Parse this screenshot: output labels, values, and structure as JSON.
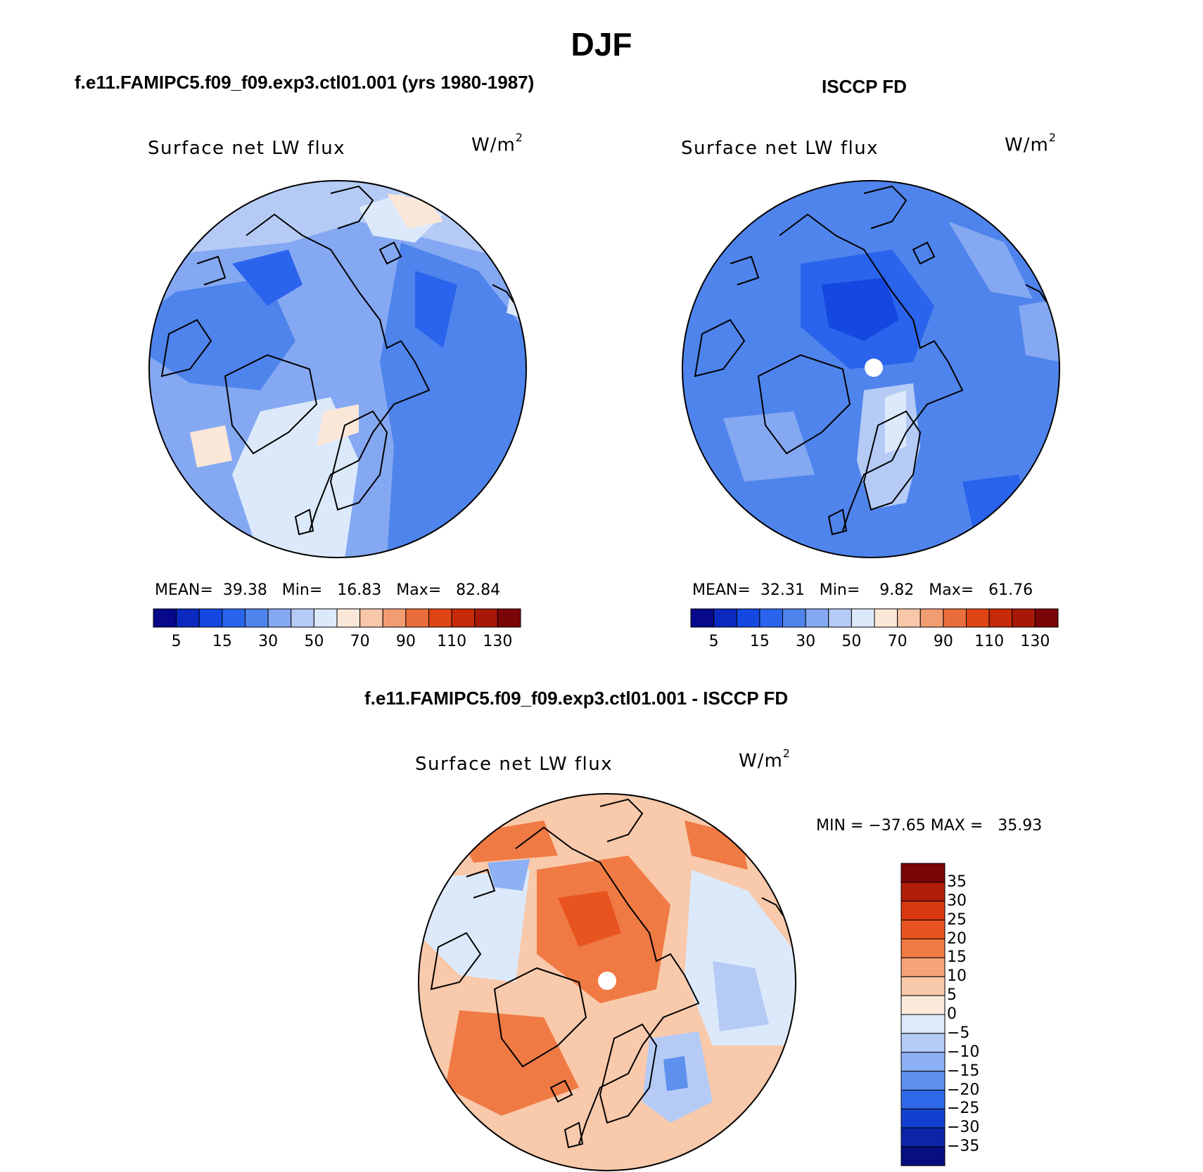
{
  "title": "DJF",
  "panels": {
    "model": {
      "case_title": "f.e11.FAMIPC5.f09_f09.exp3.ctl01.001 (yrs 1980-1987)",
      "title": "Surface net LW flux",
      "units": "W/m",
      "units_sup": "2",
      "stats": {
        "mean_label": "MEAN=",
        "mean": "39.38",
        "min_label": "Min=",
        "min": "16.83",
        "max_label": "Max=",
        "max": "82.84"
      }
    },
    "obs": {
      "case_title": "ISCCP FD",
      "title": "Surface net LW flux",
      "units": "W/m",
      "units_sup": "2",
      "stats": {
        "mean_label": "MEAN=",
        "mean": "32.31",
        "min_label": "Min=",
        "min": "9.82",
        "max_label": "Max=",
        "max": "61.76"
      }
    },
    "diff": {
      "case_title": "f.e11.FAMIPC5.f09_f09.exp3.ctl01.001 - ISCCP FD",
      "title": "Surface net LW flux",
      "units": "W/m",
      "units_sup": "2",
      "minmax": "MIN = −37.65 MAX =   35.93"
    }
  },
  "colorbar_abs": {
    "labels": [
      "5",
      "15",
      "30",
      "50",
      "70",
      "90",
      "110",
      "130"
    ],
    "colors": [
      "#08088a",
      "#0c2ac0",
      "#1448e0",
      "#2a64ec",
      "#4f84ec",
      "#85a8f2",
      "#b5cbf6",
      "#dce9fa",
      "#fbe7d8",
      "#f8c6a8",
      "#f29c72",
      "#ea6d3c",
      "#de4414",
      "#c62a08",
      "#a81808",
      "#7a0608"
    ]
  },
  "colorbar_diff": {
    "labels": [
      "35",
      "30",
      "25",
      "20",
      "15",
      "10",
      "5",
      "0",
      "−5",
      "−10",
      "−15",
      "−20",
      "−25",
      "−30",
      "−35"
    ],
    "colors": [
      "#7a0608",
      "#b01e08",
      "#d83810",
      "#e85420",
      "#f07a44",
      "#f5a27a",
      "#f9c9ab",
      "#fcebdc",
      "#dce9fa",
      "#b5cbf6",
      "#8eb0f4",
      "#5e90ee",
      "#2e68e8",
      "#1440d0",
      "#0c24a8",
      "#070e80"
    ]
  }
}
